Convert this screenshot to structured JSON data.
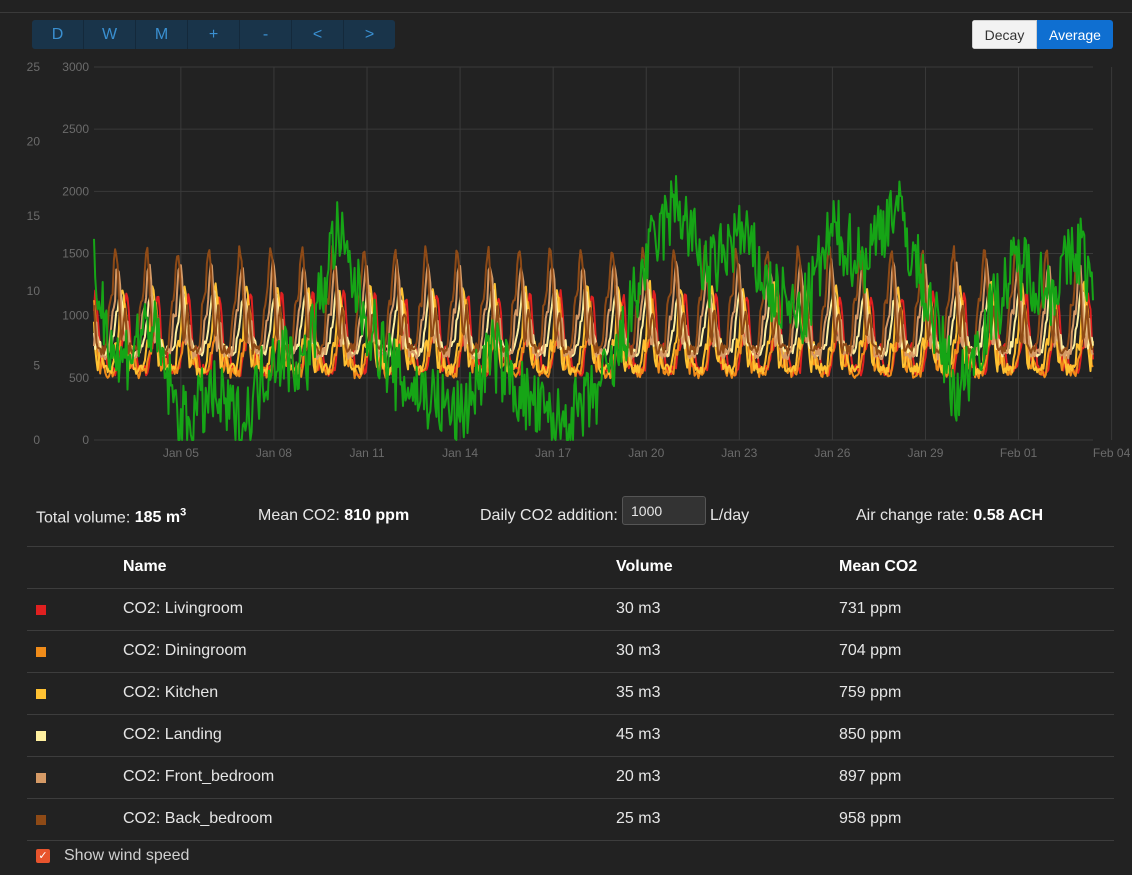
{
  "range_buttons": [
    "D",
    "W",
    "M",
    "+",
    "-",
    "<",
    ">"
  ],
  "mode_buttons": {
    "decay": "Decay",
    "average": "Average"
  },
  "chart_data": {
    "type": "line",
    "y_left": {
      "ticks": [
        "25",
        "20",
        "15",
        "10",
        "5",
        "0"
      ],
      "range": [
        0,
        25
      ]
    },
    "y_right": {
      "ticks": [
        "3000",
        "2500",
        "2000",
        "1500",
        "1000",
        "500",
        "0"
      ],
      "range": [
        0,
        3000
      ]
    },
    "x_ticks": [
      "Jan 05",
      "Jan 08",
      "Jan 11",
      "Jan 14",
      "Jan 17",
      "Jan 20",
      "Jan 23",
      "Jan 26",
      "Jan 29",
      "Feb 01",
      "Feb 04"
    ],
    "x_range_days": [
      2.2,
      34.4
    ],
    "x_tick_days": [
      5,
      8,
      11,
      14,
      17,
      20,
      23,
      26,
      29,
      32,
      35
    ],
    "series": [
      {
        "name": "CO2: Livingroom",
        "color": "#e02020",
        "axis": "right",
        "mean": 731,
        "period": 1,
        "amp": 380,
        "sharp": 3.0,
        "extra": 0.3
      },
      {
        "name": "CO2: Diningroom",
        "color": "#f08c1a",
        "axis": "right",
        "mean": 704,
        "period": 1,
        "amp": 360,
        "sharp": 3.0,
        "extra": 0.25
      },
      {
        "name": "CO2: Kitchen",
        "color": "#ffc233",
        "axis": "right",
        "mean": 759,
        "period": 1,
        "amp": 420,
        "sharp": 3.5,
        "extra": 0.3
      },
      {
        "name": "CO2: Landing",
        "color": "#fff0a0",
        "axis": "right",
        "mean": 850,
        "period": 1,
        "amp": 300,
        "sharp": 2.0,
        "extra": 0.2
      },
      {
        "name": "CO2: Front_bedroom",
        "color": "#d59a66",
        "axis": "right",
        "mean": 897,
        "period": 1,
        "amp": 450,
        "sharp": 2.5,
        "extra": 0.35
      },
      {
        "name": "CO2: Back_bedroom",
        "color": "#8e4a16",
        "axis": "right",
        "mean": 958,
        "period": 1,
        "amp": 500,
        "sharp": 2.5,
        "extra": 0.4
      },
      {
        "name": "Wind speed",
        "color": "#16a516",
        "axis": "left",
        "mean": 7,
        "period": 0,
        "amp": 0,
        "sharp": 0,
        "extra": 0
      }
    ],
    "wind_keypoints": [
      [
        2.2,
        11
      ],
      [
        3,
        5
      ],
      [
        4,
        8
      ],
      [
        5,
        1
      ],
      [
        6,
        3
      ],
      [
        7,
        1
      ],
      [
        8,
        6
      ],
      [
        9,
        5
      ],
      [
        10,
        14
      ],
      [
        11,
        8
      ],
      [
        12,
        4
      ],
      [
        13,
        3
      ],
      [
        14,
        1.5
      ],
      [
        15,
        6
      ],
      [
        16,
        3
      ],
      [
        17,
        1
      ],
      [
        18,
        2
      ],
      [
        19,
        5
      ],
      [
        20,
        12
      ],
      [
        21,
        16
      ],
      [
        22,
        11
      ],
      [
        23,
        14
      ],
      [
        24,
        10
      ],
      [
        25,
        8
      ],
      [
        26,
        14
      ],
      [
        27,
        12
      ],
      [
        28,
        16
      ],
      [
        29,
        10
      ],
      [
        30,
        3
      ],
      [
        31,
        8
      ],
      [
        32,
        12
      ],
      [
        33,
        10
      ],
      [
        34,
        13
      ],
      [
        34.4,
        10
      ]
    ]
  },
  "stats": {
    "total_volume_label": "Total volume:",
    "total_volume_value": "185 m",
    "total_volume_sup": "3",
    "mean_co2_label": "Mean CO2:",
    "mean_co2_value": "810 ppm",
    "daily_addition_label": "Daily CO2 addition:",
    "daily_addition_value": "1000",
    "daily_addition_unit": "L/day",
    "ach_label": "Air change rate:",
    "ach_value": "0.58 ACH"
  },
  "table": {
    "headers": {
      "name": "Name",
      "volume": "Volume",
      "mean": "Mean CO2"
    },
    "rows": [
      {
        "name": "CO2: Livingroom",
        "volume": "30 m3",
        "mean": "731 ppm",
        "color": "#e02020"
      },
      {
        "name": "CO2: Diningroom",
        "volume": "30 m3",
        "mean": "704 ppm",
        "color": "#f08c1a"
      },
      {
        "name": "CO2: Kitchen",
        "volume": "35 m3",
        "mean": "759 ppm",
        "color": "#ffc233"
      },
      {
        "name": "CO2: Landing",
        "volume": "45 m3",
        "mean": "850 ppm",
        "color": "#fff0a0"
      },
      {
        "name": "CO2: Front_bedroom",
        "volume": "20 m3",
        "mean": "897 ppm",
        "color": "#d59a66"
      },
      {
        "name": "CO2: Back_bedroom",
        "volume": "25 m3",
        "mean": "958 ppm",
        "color": "#8e4a16"
      }
    ]
  },
  "wind_toggle": {
    "label": "Show wind speed",
    "checked": true,
    "check_glyph": "✓"
  }
}
